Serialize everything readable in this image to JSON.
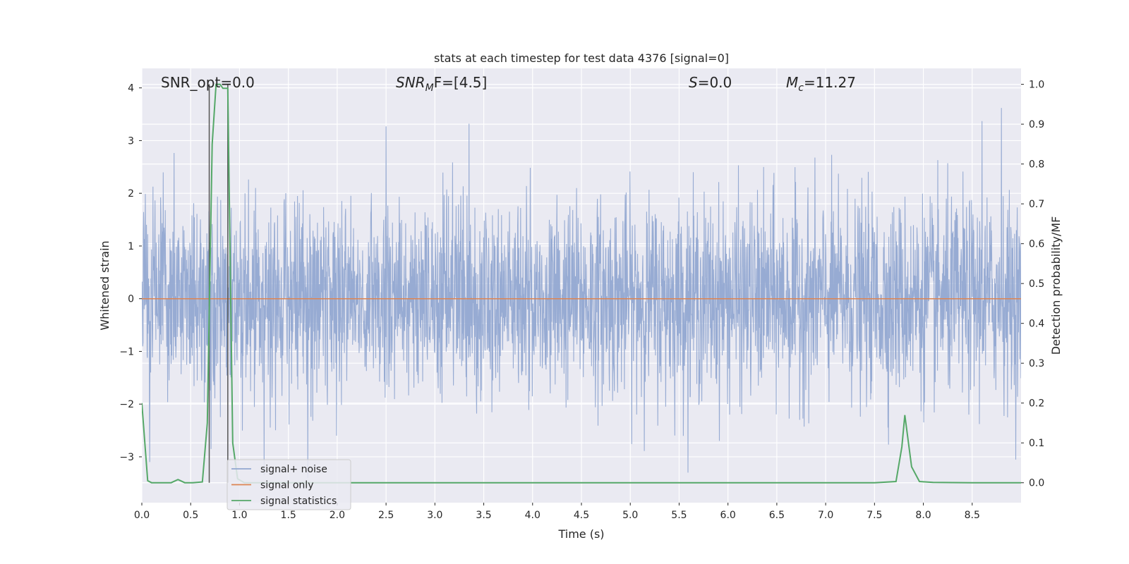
{
  "chart_data": {
    "type": "line",
    "title": "stats at each timestep for test data 4376 [signal=0]",
    "xlabel": "Time (s)",
    "ylabel": "Whitened strain",
    "y2label": "Detection probability/MF",
    "xlim": [
      0,
      9
    ],
    "ylim": [
      -3.87,
      4.37
    ],
    "y2lim": [
      -0.05,
      1.04
    ],
    "x_ticks": [
      0.0,
      0.5,
      1.0,
      1.5,
      2.0,
      2.5,
      3.0,
      3.5,
      4.0,
      4.5,
      5.0,
      5.5,
      6.0,
      6.5,
      7.0,
      7.5,
      8.0,
      8.5
    ],
    "x_tick_labels": [
      "0.0",
      "0.5",
      "1.0",
      "1.5",
      "2.0",
      "2.5",
      "3.0",
      "3.5",
      "4.0",
      "4.5",
      "5.0",
      "5.5",
      "6.0",
      "6.5",
      "7.0",
      "7.5",
      "8.0",
      "8.5"
    ],
    "y_ticks": [
      -3,
      -2,
      -1,
      0,
      1,
      2,
      3,
      4
    ],
    "y_tick_labels": [
      "−3",
      "−2",
      "−1",
      "0",
      "1",
      "2",
      "3",
      "4"
    ],
    "y2_ticks": [
      0.0,
      0.1,
      0.2,
      0.3,
      0.4,
      0.5,
      0.6,
      0.7,
      0.8,
      0.9,
      1.0
    ],
    "y2_tick_labels": [
      "0.0",
      "0.1",
      "0.2",
      "0.3",
      "0.4",
      "0.5",
      "0.6",
      "0.7",
      "0.8",
      "0.9",
      "1.0"
    ],
    "grid": true,
    "legend_location": "lower-left",
    "annotations": {
      "snr_opt": "SNR_opt=0.0",
      "snr_mf_label": "SNR",
      "snr_mf_sub": "M",
      "snr_mf_tail": "F=[4.5]",
      "s_label": "S",
      "s_value": "=0.0",
      "mc_label": "M",
      "mc_sub": "c",
      "mc_value": "=11.27"
    },
    "vertical_markers": [
      0.69,
      0.88
    ],
    "series": [
      {
        "name": "signal+ noise",
        "color": "#92a8d1",
        "axis": "left",
        "description": "whitened noise, roughly Gaussian around 0, sampled densely from 0 to 9 s",
        "band_approx": [
          -1.3,
          1.3
        ],
        "highlighted_peaks": [
          {
            "x": 2.5,
            "y": 3.27
          },
          {
            "x": 3.35,
            "y": 3.32
          },
          {
            "x": 8.8,
            "y": 3.62
          },
          {
            "x": 8.6,
            "y": 3.37
          },
          {
            "x": 1.25,
            "y": -3.35
          },
          {
            "x": 1.7,
            "y": -3.4
          },
          {
            "x": 0.08,
            "y": -3.1
          }
        ]
      },
      {
        "name": "signal only",
        "color": "#dd8452",
        "axis": "left",
        "x": [
          0,
          9
        ],
        "values": [
          0,
          0
        ]
      },
      {
        "name": "signal statistics",
        "color": "#55a868",
        "axis": "right",
        "x": [
          0.0,
          0.06,
          0.1,
          0.2,
          0.3,
          0.37,
          0.44,
          0.52,
          0.62,
          0.67,
          0.72,
          0.76,
          0.8,
          0.83,
          0.88,
          0.93,
          0.98,
          1.05,
          1.2,
          2.0,
          4.0,
          7.5,
          7.72,
          7.78,
          7.81,
          7.88,
          7.96,
          8.1,
          8.5,
          9.0
        ],
        "values": [
          0.2,
          0.005,
          0.0,
          0.0,
          0.0,
          0.008,
          0.0,
          0.0,
          0.002,
          0.15,
          0.85,
          1.0,
          1.0,
          0.99,
          0.99,
          0.1,
          0.01,
          0.0,
          0.0,
          0.0,
          0.0,
          0.0,
          0.003,
          0.09,
          0.17,
          0.04,
          0.003,
          0.001,
          0.0,
          0.0
        ]
      }
    ]
  },
  "colors": {
    "axes_bg": "#eaeaf2",
    "grid": "#ffffff",
    "noise": "#92a8d1",
    "signal": "#dd8452",
    "stats": "#55a868",
    "marker": "#555555"
  }
}
